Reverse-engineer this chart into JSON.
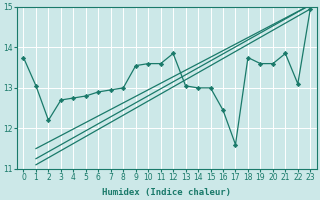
{
  "xlabel": "Humidex (Indice chaleur)",
  "bg_color": "#cce8e8",
  "grid_color": "#ffffff",
  "line_color": "#1a7a6a",
  "xlim": [
    -0.5,
    23.5
  ],
  "ylim": [
    11,
    15
  ],
  "yticks": [
    11,
    12,
    13,
    14,
    15
  ],
  "xticks": [
    0,
    1,
    2,
    3,
    4,
    5,
    6,
    7,
    8,
    9,
    10,
    11,
    12,
    13,
    14,
    15,
    16,
    17,
    18,
    19,
    20,
    21,
    22,
    23
  ],
  "series_main_x": [
    0,
    1,
    2,
    3,
    4,
    5,
    6,
    7,
    8,
    9,
    10,
    11,
    12,
    13,
    14,
    15,
    16,
    17,
    18,
    19,
    20,
    21,
    22,
    23
  ],
  "series_main_y": [
    13.75,
    13.05,
    12.2,
    12.7,
    12.75,
    12.8,
    12.9,
    12.95,
    13.0,
    13.55,
    13.6,
    13.6,
    13.85,
    13.05,
    13.0,
    13.0,
    12.45,
    11.6,
    13.75,
    13.6,
    13.6,
    13.85,
    13.1,
    14.95
  ],
  "line1_x": [
    1,
    23
  ],
  "line1_y": [
    11.1,
    14.95
  ],
  "line2_x": [
    1,
    23
  ],
  "line2_y": [
    11.25,
    15.05
  ],
  "line3_x": [
    1,
    23
  ],
  "line3_y": [
    11.5,
    15.05
  ]
}
